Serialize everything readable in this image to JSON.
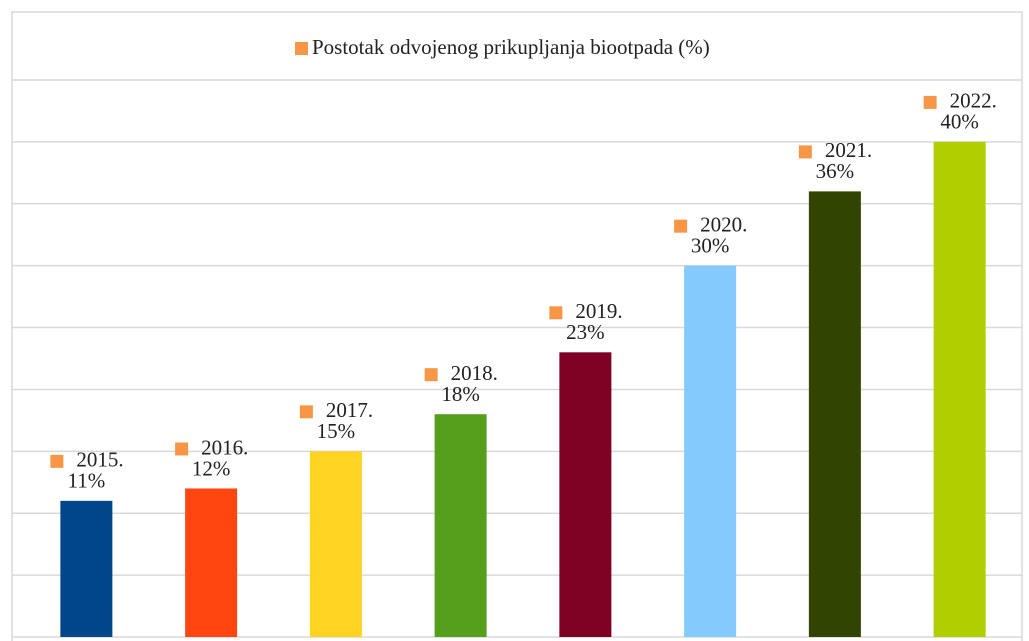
{
  "chart_data": {
    "type": "bar",
    "series": [
      {
        "name": "Postotak odvojenog prikupljanja biootpada (%)",
        "color": "#f79646",
        "values": [
          11,
          12,
          15,
          18,
          23,
          30,
          36,
          40
        ],
        "value_labels": [
          "11%",
          "12%",
          "15%",
          "18%",
          "23%",
          "30%",
          "36%",
          "40%"
        ],
        "point_colors": [
          "#00468b",
          "#ff4611",
          "#ffd321",
          "#569f1d",
          "#7e0022",
          "#84cafd",
          "#324401",
          "#b1cf00"
        ]
      }
    ],
    "categories": [
      "2015.",
      "2016.",
      "2017.",
      "2018.",
      "2019.",
      "2020.",
      "2021.",
      "2022."
    ],
    "ylim": [
      0,
      45
    ],
    "yticks": [
      0,
      5,
      10,
      15,
      20,
      25,
      30,
      35,
      40,
      45
    ],
    "grid": true
  }
}
